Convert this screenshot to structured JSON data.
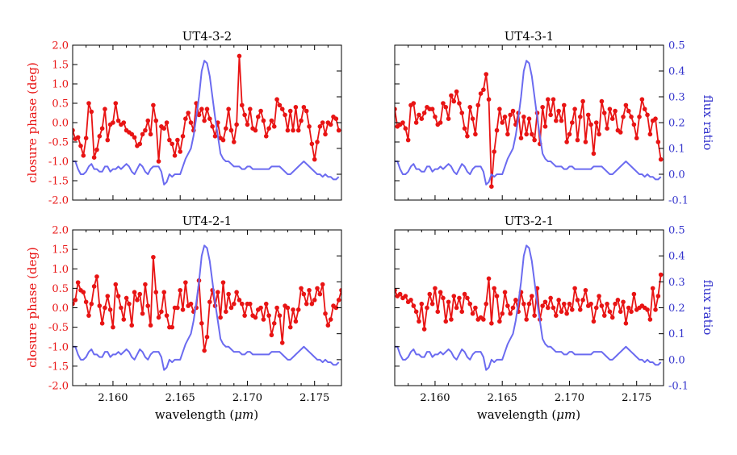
{
  "figure": {
    "left_ylabel": "closure phase (deg)",
    "right_ylabel": "flux ratio",
    "xlabel_text": "wavelength (",
    "xlabel_mu": "μm",
    "xlabel_close": ")"
  },
  "colors": {
    "closure": "#e81414",
    "flux": "#6b6bf0",
    "axis": "#000000"
  },
  "chart_data": [
    {
      "type": "line",
      "title": "UT4-3-2",
      "xlim": [
        2.157,
        2.177
      ],
      "ylim_left": [
        -2.0,
        2.0
      ],
      "ylim_right": [
        -0.1,
        0.5
      ],
      "xticks": [
        "2.160",
        "2.165",
        "2.170",
        "2.175"
      ],
      "yticks_left": [
        "-2.0",
        "-1.5",
        "-1.0",
        "-0.5",
        "0.0",
        "0.5",
        "1.0",
        "1.5",
        "2.0"
      ],
      "yticks_right": [
        "-0.1",
        "0.0",
        "0.1",
        "0.2",
        "0.3",
        "0.4",
        "0.5"
      ],
      "show_left_labels": true,
      "show_right_labels": false,
      "show_x_labels": false,
      "series": [
        {
          "name": "closure phase",
          "axis": "left",
          "x_start": 2.157,
          "x_step": 0.0002,
          "values": [
            -0.2,
            -0.42,
            -0.38,
            -0.6,
            -0.85,
            -0.4,
            0.5,
            0.28,
            -0.9,
            -0.7,
            -0.35,
            -0.15,
            0.35,
            -0.45,
            -0.05,
            0.0,
            0.5,
            0.05,
            -0.05,
            0.0,
            -0.2,
            -0.25,
            -0.3,
            -0.38,
            -0.6,
            -0.55,
            -0.3,
            -0.2,
            0.05,
            -0.3,
            0.45,
            0.05,
            -1.0,
            -0.1,
            -0.15,
            0.0,
            -0.45,
            -0.55,
            -0.85,
            -0.45,
            -0.75,
            -0.35,
            0.1,
            0.25,
            0.0,
            -0.2,
            0.5,
            0.2,
            0.35,
            0.05,
            0.35,
            0.1,
            -0.1,
            -0.35,
            0.0,
            -0.4,
            -0.45,
            -0.15,
            0.35,
            -0.2,
            -0.5,
            -0.05,
            1.72,
            0.45,
            0.2,
            -0.05,
            0.35,
            -0.15,
            -0.2,
            0.15,
            0.3,
            0.05,
            -0.35,
            -0.15,
            0.05,
            -0.1,
            0.6,
            0.45,
            0.35,
            0.2,
            -0.2,
            0.3,
            -0.2,
            0.4,
            -0.2,
            0.05,
            0.4,
            0.3,
            -0.1,
            -0.55,
            -0.95,
            -0.5,
            -0.1,
            0.0,
            -0.3,
            0.0,
            -0.05,
            0.15,
            0.1,
            -0.2
          ]
        },
        {
          "name": "flux ratio",
          "axis": "right",
          "x_start": 2.157,
          "x_step": 0.0002,
          "values": [
            0.05,
            0.05,
            0.02,
            0.0,
            0.0,
            0.01,
            0.03,
            0.04,
            0.02,
            0.02,
            0.01,
            0.01,
            0.03,
            0.03,
            0.01,
            0.02,
            0.02,
            0.03,
            0.02,
            0.03,
            0.04,
            0.03,
            0.01,
            0.0,
            0.02,
            0.04,
            0.03,
            0.01,
            0.0,
            0.02,
            0.03,
            0.03,
            0.03,
            0.01,
            -0.04,
            -0.03,
            0.0,
            -0.01,
            0.0,
            0.0,
            0.0,
            0.03,
            0.06,
            0.08,
            0.1,
            0.15,
            0.22,
            0.3,
            0.4,
            0.44,
            0.43,
            0.38,
            0.3,
            0.22,
            0.15,
            0.08,
            0.06,
            0.05,
            0.05,
            0.04,
            0.03,
            0.03,
            0.03,
            0.02,
            0.02,
            0.03,
            0.03,
            0.02,
            0.02,
            0.02,
            0.02,
            0.02,
            0.02,
            0.02,
            0.03,
            0.03,
            0.03,
            0.03,
            0.02,
            0.01,
            0.0,
            0.0,
            0.01,
            0.02,
            0.03,
            0.04,
            0.05,
            0.04,
            0.03,
            0.02,
            0.01,
            0.0,
            0.0,
            -0.01,
            0.0,
            -0.01,
            -0.01,
            -0.02,
            -0.02,
            -0.01
          ]
        }
      ]
    },
    {
      "type": "line",
      "title": "UT4-3-1",
      "xlim": [
        2.157,
        2.177
      ],
      "ylim_left": [
        -2.0,
        2.0
      ],
      "ylim_right": [
        -0.1,
        0.5
      ],
      "xticks": [
        "2.160",
        "2.165",
        "2.170",
        "2.175"
      ],
      "yticks_left": [
        "-2.0",
        "-1.5",
        "-1.0",
        "-0.5",
        "0.0",
        "0.5",
        "1.0",
        "1.5",
        "2.0"
      ],
      "yticks_right": [
        "-0.1",
        "0.0",
        "0.1",
        "0.2",
        "0.3",
        "0.4",
        "0.5"
      ],
      "show_left_labels": false,
      "show_right_labels": true,
      "show_x_labels": false,
      "series": [
        {
          "name": "closure phase",
          "axis": "left",
          "x_start": 2.157,
          "x_step": 0.0002,
          "values": [
            0.35,
            -0.1,
            -0.05,
            0.0,
            -0.15,
            -0.45,
            0.45,
            0.5,
            0.0,
            0.2,
            0.1,
            0.25,
            0.4,
            0.35,
            0.35,
            0.15,
            -0.05,
            0.0,
            0.5,
            0.4,
            0.1,
            0.7,
            0.55,
            0.8,
            0.5,
            0.25,
            -0.15,
            -0.35,
            0.4,
            0.1,
            -0.3,
            0.45,
            0.75,
            0.85,
            1.25,
            0.6,
            -1.65,
            -0.75,
            -0.2,
            0.35,
            0.0,
            0.15,
            -0.3,
            0.2,
            0.3,
            -0.05,
            0.25,
            -0.4,
            0.15,
            -0.3,
            0.1,
            -0.3,
            -0.45,
            0.25,
            -0.55,
            0.4,
            -0.1,
            0.6,
            0.2,
            0.6,
            0.05,
            0.3,
            0.05,
            0.45,
            -0.5,
            -0.3,
            0.0,
            0.35,
            -0.45,
            0.15,
            0.55,
            -0.5,
            0.2,
            -0.05,
            -0.8,
            0.0,
            -0.3,
            0.55,
            0.25,
            -0.15,
            0.35,
            0.1,
            0.3,
            -0.2,
            -0.25,
            0.15,
            0.45,
            0.3,
            0.15,
            -0.05,
            -0.4,
            0.15,
            0.6,
            0.35,
            0.2,
            -0.3,
            0.05,
            0.1,
            -0.5,
            -0.95
          ]
        },
        {
          "name": "flux ratio",
          "axis": "right",
          "x_start": 2.157,
          "x_step": 0.0002,
          "values": [
            0.05,
            0.05,
            0.02,
            0.0,
            0.0,
            0.01,
            0.03,
            0.04,
            0.02,
            0.02,
            0.01,
            0.01,
            0.03,
            0.03,
            0.01,
            0.02,
            0.02,
            0.03,
            0.02,
            0.03,
            0.04,
            0.03,
            0.01,
            0.0,
            0.02,
            0.04,
            0.03,
            0.01,
            0.0,
            0.02,
            0.03,
            0.03,
            0.03,
            0.01,
            -0.04,
            -0.03,
            0.0,
            -0.01,
            0.0,
            0.0,
            0.0,
            0.03,
            0.06,
            0.08,
            0.1,
            0.15,
            0.22,
            0.3,
            0.4,
            0.44,
            0.43,
            0.38,
            0.3,
            0.22,
            0.15,
            0.08,
            0.06,
            0.05,
            0.05,
            0.04,
            0.03,
            0.03,
            0.03,
            0.02,
            0.02,
            0.03,
            0.03,
            0.02,
            0.02,
            0.02,
            0.02,
            0.02,
            0.02,
            0.02,
            0.03,
            0.03,
            0.03,
            0.03,
            0.02,
            0.01,
            0.0,
            0.0,
            0.01,
            0.02,
            0.03,
            0.04,
            0.05,
            0.04,
            0.03,
            0.02,
            0.01,
            0.0,
            0.0,
            -0.01,
            0.0,
            -0.01,
            -0.01,
            -0.02,
            -0.02,
            -0.01
          ]
        }
      ]
    },
    {
      "type": "line",
      "title": "UT4-2-1",
      "xlim": [
        2.157,
        2.177
      ],
      "ylim_left": [
        -2.0,
        2.0
      ],
      "ylim_right": [
        -0.1,
        0.5
      ],
      "xticks": [
        "2.160",
        "2.165",
        "2.170",
        "2.175"
      ],
      "yticks_left": [
        "-2.0",
        "-1.5",
        "-1.0",
        "-0.5",
        "0.0",
        "0.5",
        "1.0",
        "1.5",
        "2.0"
      ],
      "yticks_right": [
        "-0.1",
        "0.0",
        "0.1",
        "0.2",
        "0.3",
        "0.4",
        "0.5"
      ],
      "show_left_labels": true,
      "show_right_labels": false,
      "show_x_labels": true,
      "series": [
        {
          "name": "closure phase",
          "axis": "left",
          "x_start": 2.157,
          "x_step": 0.0002,
          "values": [
            0.1,
            0.2,
            0.65,
            0.45,
            0.4,
            0.15,
            -0.2,
            0.1,
            0.55,
            0.8,
            0.05,
            -0.4,
            0.0,
            0.3,
            -0.05,
            -0.5,
            0.6,
            0.3,
            0.0,
            -0.3,
            0.25,
            0.1,
            -0.45,
            0.4,
            0.2,
            0.35,
            -0.15,
            0.6,
            0.05,
            -0.45,
            1.3,
            0.4,
            -0.25,
            -0.1,
            0.4,
            -0.2,
            -0.5,
            -0.5,
            0.0,
            0.0,
            0.45,
            -0.05,
            0.65,
            0.05,
            0.1,
            -0.1,
            0.0,
            0.7,
            -0.4,
            -1.1,
            -0.75,
            0.15,
            0.45,
            0.05,
            0.4,
            -0.25,
            0.65,
            -0.1,
            0.35,
            0.0,
            0.1,
            0.4,
            0.2,
            0.1,
            -0.2,
            0.1,
            0.1,
            -0.2,
            -0.25,
            -0.05,
            0.0,
            -0.3,
            0.1,
            -0.2,
            -0.7,
            -0.4,
            0.0,
            -0.2,
            -0.9,
            0.05,
            0.0,
            -0.5,
            -0.05,
            -0.35,
            -0.05,
            0.5,
            0.35,
            0.1,
            0.45,
            0.1,
            0.2,
            0.5,
            0.35,
            0.6,
            -0.15,
            -0.45,
            -0.3,
            0.05,
            0.0,
            0.2,
            0.45
          ]
        },
        {
          "name": "flux ratio",
          "axis": "right",
          "x_start": 2.157,
          "x_step": 0.0002,
          "values": [
            0.05,
            0.05,
            0.02,
            0.0,
            0.0,
            0.01,
            0.03,
            0.04,
            0.02,
            0.02,
            0.01,
            0.01,
            0.03,
            0.03,
            0.01,
            0.02,
            0.02,
            0.03,
            0.02,
            0.03,
            0.04,
            0.03,
            0.01,
            0.0,
            0.02,
            0.04,
            0.03,
            0.01,
            0.0,
            0.02,
            0.03,
            0.03,
            0.03,
            0.01,
            -0.04,
            -0.03,
            0.0,
            -0.01,
            0.0,
            0.0,
            0.0,
            0.03,
            0.06,
            0.08,
            0.1,
            0.15,
            0.22,
            0.3,
            0.4,
            0.44,
            0.43,
            0.38,
            0.3,
            0.22,
            0.15,
            0.08,
            0.06,
            0.05,
            0.05,
            0.04,
            0.03,
            0.03,
            0.03,
            0.02,
            0.02,
            0.03,
            0.03,
            0.02,
            0.02,
            0.02,
            0.02,
            0.02,
            0.02,
            0.02,
            0.03,
            0.03,
            0.03,
            0.03,
            0.02,
            0.01,
            0.0,
            0.0,
            0.01,
            0.02,
            0.03,
            0.04,
            0.05,
            0.04,
            0.03,
            0.02,
            0.01,
            0.0,
            0.0,
            -0.01,
            0.0,
            -0.01,
            -0.01,
            -0.02,
            -0.02,
            -0.01
          ]
        }
      ]
    },
    {
      "type": "line",
      "title": "UT3-2-1",
      "xlim": [
        2.157,
        2.177
      ],
      "ylim_left": [
        -2.0,
        2.0
      ],
      "ylim_right": [
        -0.1,
        0.5
      ],
      "xticks": [
        "2.160",
        "2.165",
        "2.170",
        "2.175"
      ],
      "yticks_left": [
        "-2.0",
        "-1.5",
        "-1.0",
        "-0.5",
        "0.0",
        "0.5",
        "1.0",
        "1.5",
        "2.0"
      ],
      "yticks_right": [
        "-0.1",
        "0.0",
        "0.1",
        "0.2",
        "0.3",
        "0.4",
        "0.5"
      ],
      "show_left_labels": false,
      "show_right_labels": true,
      "show_x_labels": true,
      "series": [
        {
          "name": "closure phase",
          "axis": "left",
          "x_start": 2.157,
          "x_step": 0.0002,
          "values": [
            0.45,
            0.3,
            0.35,
            0.25,
            0.3,
            0.15,
            0.2,
            0.05,
            -0.1,
            -0.35,
            0.1,
            -0.55,
            0.0,
            0.35,
            0.1,
            0.5,
            -0.1,
            0.4,
            0.25,
            -0.35,
            0.15,
            -0.3,
            0.3,
            0.0,
            0.25,
            -0.1,
            0.35,
            0.25,
            0.1,
            -0.15,
            0.0,
            -0.3,
            -0.25,
            -0.3,
            0.1,
            0.75,
            -0.4,
            0.5,
            0.3,
            -0.35,
            -0.15,
            0.4,
            0.05,
            -0.15,
            0.0,
            0.2,
            -0.1,
            0.4,
            0.1,
            -0.3,
            0.1,
            0.3,
            -0.2,
            0.5,
            -0.3,
            0.05,
            0.15,
            0.0,
            0.25,
            0.0,
            -0.2,
            0.2,
            -0.1,
            0.1,
            -0.15,
            0.1,
            -0.05,
            0.5,
            0.2,
            -0.05,
            0.2,
            0.45,
            0.05,
            0.1,
            -0.35,
            0.0,
            0.3,
            0.05,
            -0.2,
            0.1,
            -0.1,
            -0.25,
            0.1,
            0.2,
            -0.1,
            0.15,
            -0.4,
            0.0,
            -0.1,
            0.35,
            -0.05,
            0.0,
            0.05,
            0.0,
            -0.05,
            -0.3,
            0.5,
            -0.05,
            0.3,
            0.85
          ]
        },
        {
          "name": "flux ratio",
          "axis": "right",
          "x_start": 2.157,
          "x_step": 0.0002,
          "values": [
            0.05,
            0.05,
            0.02,
            0.0,
            0.0,
            0.01,
            0.03,
            0.04,
            0.02,
            0.02,
            0.01,
            0.01,
            0.03,
            0.03,
            0.01,
            0.02,
            0.02,
            0.03,
            0.02,
            0.03,
            0.04,
            0.03,
            0.01,
            0.0,
            0.02,
            0.04,
            0.03,
            0.01,
            0.0,
            0.02,
            0.03,
            0.03,
            0.03,
            0.01,
            -0.04,
            -0.03,
            0.0,
            -0.01,
            0.0,
            0.0,
            0.0,
            0.03,
            0.06,
            0.08,
            0.1,
            0.15,
            0.22,
            0.3,
            0.4,
            0.44,
            0.43,
            0.38,
            0.3,
            0.22,
            0.15,
            0.08,
            0.06,
            0.05,
            0.05,
            0.04,
            0.03,
            0.03,
            0.03,
            0.02,
            0.02,
            0.03,
            0.03,
            0.02,
            0.02,
            0.02,
            0.02,
            0.02,
            0.02,
            0.02,
            0.03,
            0.03,
            0.03,
            0.03,
            0.02,
            0.01,
            0.0,
            0.0,
            0.01,
            0.02,
            0.03,
            0.04,
            0.05,
            0.04,
            0.03,
            0.02,
            0.01,
            0.0,
            0.0,
            -0.01,
            0.0,
            -0.01,
            -0.01,
            -0.02,
            -0.02,
            -0.01
          ]
        }
      ]
    }
  ]
}
